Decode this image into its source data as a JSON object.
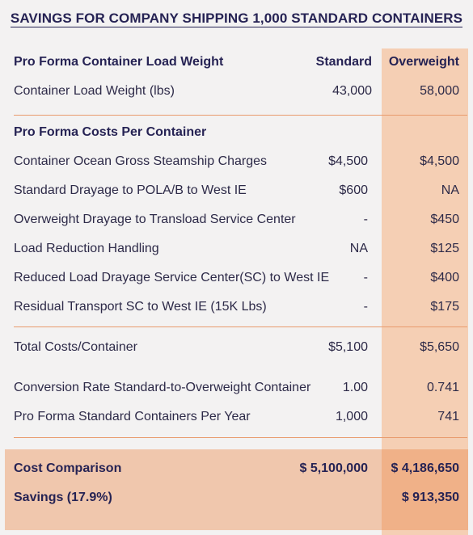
{
  "title": "SAVINGS FOR COMPANY SHIPPING 1,000 STANDARD CONTAINERS",
  "load_weight": {
    "header": {
      "label": "Pro Forma Container Load Weight",
      "standard": "Standard",
      "overweight": "Overweight"
    },
    "row": {
      "label": "Container Load Weight (lbs)",
      "standard": "43,000",
      "overweight": "58,000"
    }
  },
  "costs": {
    "header": "Pro Forma Costs Per Container",
    "rows": [
      {
        "label": "Container Ocean Gross Steamship Charges",
        "standard": "$4,500",
        "overweight": "$4,500"
      },
      {
        "label": "Standard Drayage to POLA/B to West IE",
        "standard": "$600",
        "overweight": "NA"
      },
      {
        "label": "Overweight Drayage to Transload Service Center",
        "standard": "-",
        "overweight": "$450"
      },
      {
        "label": "Load Reduction Handling",
        "standard": "NA",
        "overweight": "$125"
      },
      {
        "label": "Reduced Load Drayage Service Center(SC) to West IE",
        "standard": "-",
        "overweight": "$400"
      },
      {
        "label": "Residual Transport SC to West IE (15K Lbs)",
        "standard": "-",
        "overweight": "$175"
      }
    ]
  },
  "totals": {
    "total": {
      "label": "Total Costs/Container",
      "standard": "$5,100",
      "overweight": "$5,650"
    },
    "conversion": {
      "label": "Conversion Rate Standard-to-Overweight Container",
      "standard": "1.00",
      "overweight": "0.741"
    },
    "containers": {
      "label": "Pro Forma Standard Containers Per Year",
      "standard": "1,000",
      "overweight": "741"
    }
  },
  "summary": {
    "comparison": {
      "label": "Cost Comparison",
      "standard": "$ 5,100,000",
      "overweight": "$ 4,186,650"
    },
    "savings": {
      "label": "Savings (17.9%)",
      "overweight": "$ 913,350"
    }
  }
}
